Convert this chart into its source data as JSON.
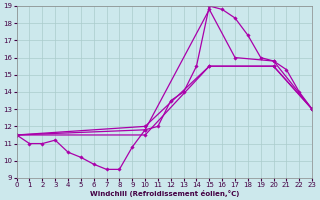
{
  "xlabel": "Windchill (Refroidissement éolien,°C)",
  "xlim": [
    0,
    23
  ],
  "ylim": [
    9,
    19
  ],
  "bg_color": "#cce8ec",
  "grid_color": "#aacccc",
  "line_color": "#aa00aa",
  "line1_x": [
    0,
    1,
    2,
    3,
    4,
    5,
    6,
    7,
    8,
    9,
    10,
    11,
    12,
    13,
    14,
    15,
    16,
    17,
    18,
    19,
    20,
    21,
    22,
    23
  ],
  "line1_y": [
    11.5,
    11.0,
    11.0,
    11.2,
    10.5,
    10.2,
    9.8,
    9.5,
    9.5,
    10.8,
    11.8,
    12.0,
    13.5,
    14.0,
    15.5,
    19.0,
    18.8,
    18.3,
    17.3,
    16.0,
    15.8,
    15.3,
    14.0,
    13.0
  ],
  "line2_x": [
    0,
    10,
    15,
    17,
    20,
    23
  ],
  "line2_y": [
    11.5,
    11.8,
    18.8,
    16.0,
    15.8,
    13.0
  ],
  "line3_x": [
    0,
    10,
    15,
    20,
    23
  ],
  "line3_y": [
    11.5,
    11.5,
    15.5,
    15.5,
    13.0
  ],
  "line4_x": [
    0,
    10,
    15,
    20,
    23
  ],
  "line4_y": [
    11.5,
    12.0,
    15.5,
    15.5,
    13.0
  ]
}
